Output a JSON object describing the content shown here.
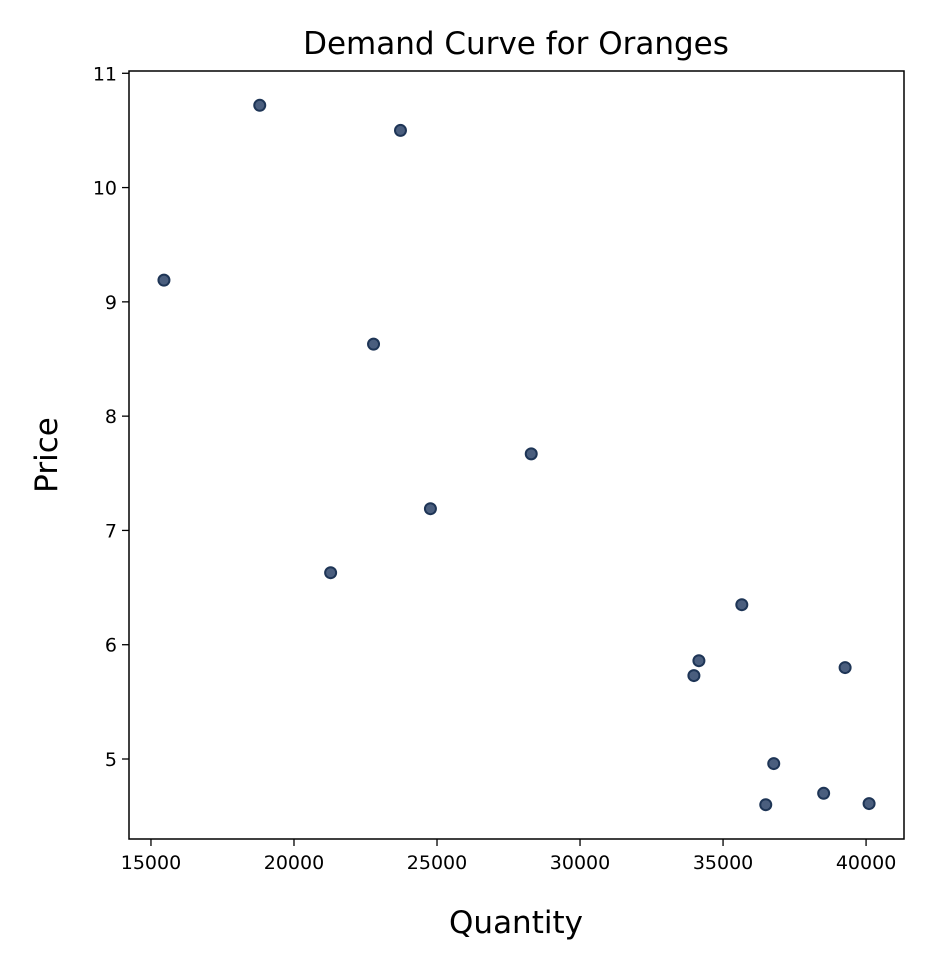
{
  "chart_data": {
    "type": "scatter",
    "title": "Demand Curve for Oranges",
    "xlabel": "Quantity",
    "ylabel": "Price",
    "xlim": [
      14232,
      41326
    ],
    "ylim": [
      4.3,
      11.02
    ],
    "xticks": [
      15000,
      20000,
      25000,
      30000,
      35000,
      40000
    ],
    "yticks": [
      5,
      6,
      7,
      8,
      9,
      10,
      11
    ],
    "grid": false,
    "marker_fill": "#4a5e7e",
    "marker_edge": "#1e3556",
    "points": [
      {
        "x": 18803,
        "y": 10.72
      },
      {
        "x": 23723,
        "y": 10.5
      },
      {
        "x": 15454,
        "y": 9.19
      },
      {
        "x": 22781,
        "y": 8.63
      },
      {
        "x": 28294,
        "y": 7.67
      },
      {
        "x": 24770,
        "y": 7.19
      },
      {
        "x": 21281,
        "y": 6.63
      },
      {
        "x": 35656,
        "y": 6.35
      },
      {
        "x": 34156,
        "y": 5.86
      },
      {
        "x": 33981,
        "y": 5.73
      },
      {
        "x": 39267,
        "y": 5.8
      },
      {
        "x": 36772,
        "y": 4.96
      },
      {
        "x": 38517,
        "y": 4.7
      },
      {
        "x": 36493,
        "y": 4.6
      },
      {
        "x": 40105,
        "y": 4.61
      }
    ]
  }
}
